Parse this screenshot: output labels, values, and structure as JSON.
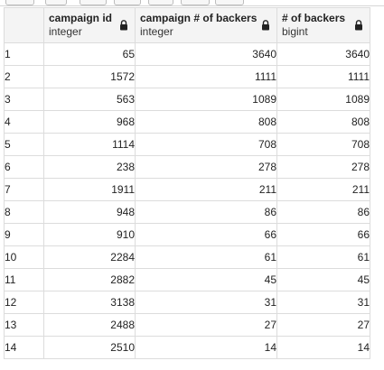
{
  "columns": [
    {
      "name": "campaign id",
      "type": "integer",
      "icon": "lock-icon"
    },
    {
      "name": "campaign # of backers",
      "type": "integer",
      "icon": "lock-icon"
    },
    {
      "name": "# of backers",
      "type": "bigint",
      "icon": "lock-icon"
    }
  ],
  "rows": [
    {
      "n": "1",
      "c1": "65",
      "c2": "3640",
      "c3": "3640"
    },
    {
      "n": "2",
      "c1": "1572",
      "c2": "1111",
      "c3": "1111"
    },
    {
      "n": "3",
      "c1": "563",
      "c2": "1089",
      "c3": "1089"
    },
    {
      "n": "4",
      "c1": "968",
      "c2": "808",
      "c3": "808"
    },
    {
      "n": "5",
      "c1": "1114",
      "c2": "708",
      "c3": "708"
    },
    {
      "n": "6",
      "c1": "238",
      "c2": "278",
      "c3": "278"
    },
    {
      "n": "7",
      "c1": "1911",
      "c2": "211",
      "c3": "211"
    },
    {
      "n": "8",
      "c1": "948",
      "c2": "86",
      "c3": "86"
    },
    {
      "n": "9",
      "c1": "910",
      "c2": "66",
      "c3": "66"
    },
    {
      "n": "10",
      "c1": "2284",
      "c2": "61",
      "c3": "61"
    },
    {
      "n": "11",
      "c1": "2882",
      "c2": "45",
      "c3": "45"
    },
    {
      "n": "12",
      "c1": "3138",
      "c2": "31",
      "c3": "31"
    },
    {
      "n": "13",
      "c1": "2488",
      "c2": "27",
      "c3": "27"
    },
    {
      "n": "14",
      "c1": "2510",
      "c2": "14",
      "c3": "14"
    }
  ],
  "colors": {
    "header_bg": "#f4f4f4",
    "grid_line": "#dcdcdc",
    "text": "#222222"
  }
}
